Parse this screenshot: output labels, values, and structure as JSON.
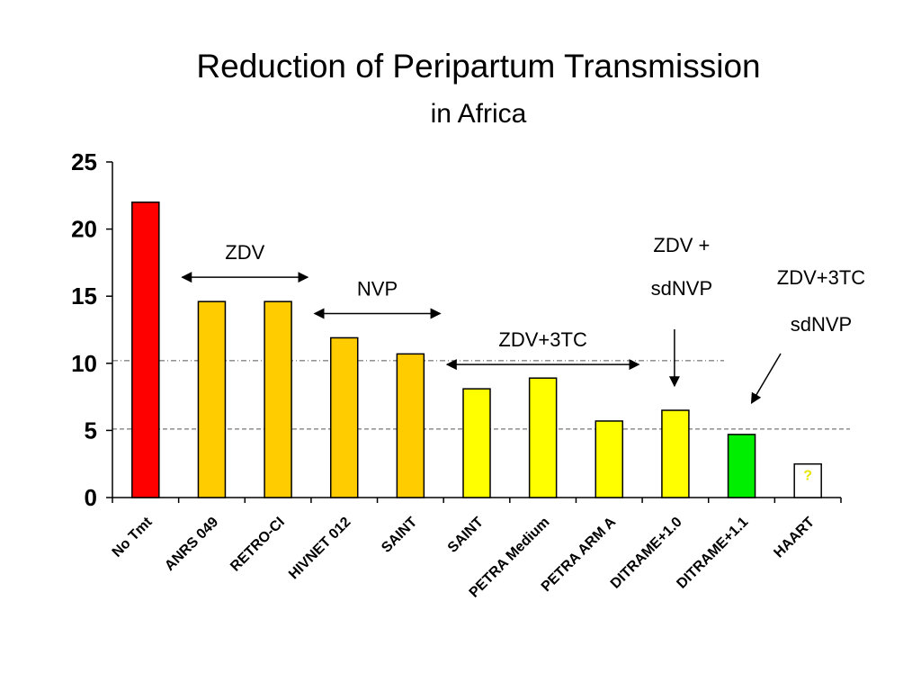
{
  "page": {
    "title": "Reduction of Peripartum Transmission",
    "subtitle": "in Africa"
  },
  "chart_data": {
    "type": "bar",
    "title": "Reduction of Peripartum Transmission",
    "subtitle": "in Africa",
    "xlabel": "",
    "ylabel": "",
    "ylim": [
      0,
      25
    ],
    "yticks": [
      "0",
      "5",
      "10",
      "15",
      "20",
      "25"
    ],
    "grid": false,
    "legend": "none",
    "categories": [
      "No Tmt",
      "ANRS 049",
      "RETRO-CI",
      "HIVNET 012",
      "SAINT",
      "SAINT",
      "PETRA Medium",
      "PETRA ARM A",
      "DITRAME+1.0",
      "DITRAME+1.1",
      "HAART"
    ],
    "values": [
      22,
      14.6,
      14.6,
      11.9,
      10.7,
      8.1,
      8.9,
      5.7,
      6.5,
      4.7,
      2.5
    ],
    "bar_colors": [
      "#ff0000",
      "#ffcc00",
      "#ffcc00",
      "#ffcc00",
      "#ffcc00",
      "#ffff00",
      "#ffff00",
      "#ffff00",
      "#ffff00",
      "#00ee00",
      "#ffffff"
    ],
    "bar_labels": [
      "",
      "",
      "",
      "",
      "",
      "",
      "",
      "",
      "",
      "",
      "?"
    ],
    "reference_lines": [
      10.2,
      5.1
    ],
    "annotations": [
      {
        "lines": [
          "ZDV"
        ],
        "from_bar": 1,
        "to_bar": 2,
        "kind": "double-arrow"
      },
      {
        "lines": [
          "NVP"
        ],
        "from_bar": 3,
        "to_bar": 4,
        "kind": "double-arrow"
      },
      {
        "lines": [
          "ZDV+3TC"
        ],
        "from_bar": 5,
        "to_bar": 7,
        "kind": "double-arrow"
      },
      {
        "lines": [
          "ZDV +",
          "sdNVP"
        ],
        "bar": 8,
        "kind": "down-arrow"
      },
      {
        "lines": [
          "ZDV+3TC",
          "sdNVP"
        ],
        "bar": 9,
        "kind": "diagonal-arrow"
      }
    ]
  },
  "colors": {
    "axis": "#000000",
    "ref_line": "#555555"
  }
}
